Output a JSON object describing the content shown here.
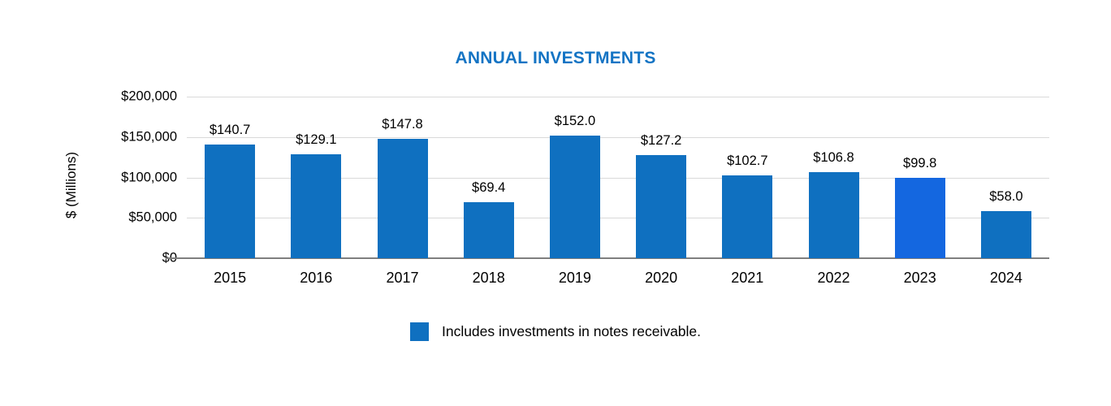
{
  "chart_data": {
    "type": "bar",
    "title": "ANNUAL INVESTMENTS",
    "ylabel": "$ (Millions)",
    "categories": [
      "2015",
      "2016",
      "2017",
      "2018",
      "2019",
      "2020",
      "2021",
      "2022",
      "2023",
      "2024"
    ],
    "values": [
      140700,
      129100,
      147800,
      69400,
      152000,
      127200,
      102700,
      106800,
      99800,
      58000
    ],
    "data_labels": [
      "$140.7",
      "$129.1",
      "$147.8",
      "$69.4",
      "$152.0",
      "$127.2",
      "$102.7",
      "$106.8",
      "$99.8",
      "$58.0"
    ],
    "ylim": [
      0,
      200000
    ],
    "yticks": [
      "$200,000",
      "$150,000",
      "$100,000",
      "$50,000",
      "$0"
    ],
    "grid": "horizontal",
    "bar_color": "#0f70c0",
    "highlight_index": 8,
    "highlight_color": "#1467e0",
    "title_color": "#1474c4",
    "legend_position": "bottom"
  },
  "legend": {
    "label": "Includes investments in notes receivable."
  }
}
